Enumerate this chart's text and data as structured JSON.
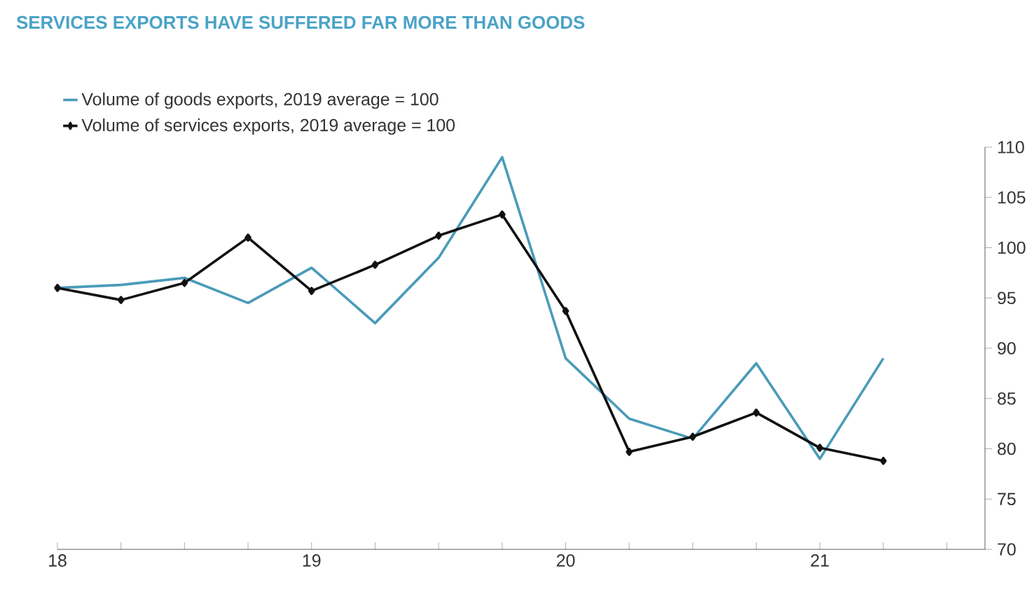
{
  "chart_data": {
    "type": "line",
    "title": "SERVICES EXPORTS HAVE SUFFERED FAR MORE THAN GOODS",
    "x": [
      18,
      18.25,
      18.5,
      18.75,
      19,
      19.25,
      19.5,
      19.75,
      20,
      20.25,
      20.5,
      20.75,
      21,
      21.25
    ],
    "series": [
      {
        "name": "Volume of goods exports, 2019 average = 100",
        "color": "#4a9bb8",
        "marker": "none",
        "values": [
          96,
          96.3,
          97,
          94.5,
          98,
          92.5,
          99,
          109,
          89,
          83,
          81,
          88.5,
          79,
          89
        ]
      },
      {
        "name": "Volume of services exports, 2019 average = 100",
        "color": "#111111",
        "marker": "diamond",
        "values": [
          96,
          94.8,
          96.5,
          101,
          95.7,
          98.3,
          101.2,
          103.3,
          93.7,
          79.7,
          81.2,
          83.6,
          80.1,
          78.8
        ]
      }
    ],
    "xlim": [
      18,
      21.65
    ],
    "xticks": [
      18,
      {
        "value": 18.25,
        "label": null
      },
      {
        "value": 18.5,
        "label": null
      },
      {
        "value": 18.75,
        "label": null
      },
      19,
      {
        "value": 19.25,
        "label": null
      },
      {
        "value": 19.5,
        "label": null
      },
      {
        "value": 19.75,
        "label": null
      },
      20,
      {
        "value": 20.25,
        "label": null
      },
      {
        "value": 20.5,
        "label": null
      },
      {
        "value": 20.75,
        "label": null
      },
      21,
      {
        "value": 21.25,
        "label": null
      },
      {
        "value": 21.5,
        "label": null
      }
    ],
    "ylim": [
      70,
      110
    ],
    "yticks": [
      70,
      75,
      80,
      85,
      90,
      95,
      100,
      105,
      110
    ],
    "legend": "top left",
    "grid": false,
    "line_style": "solid"
  }
}
